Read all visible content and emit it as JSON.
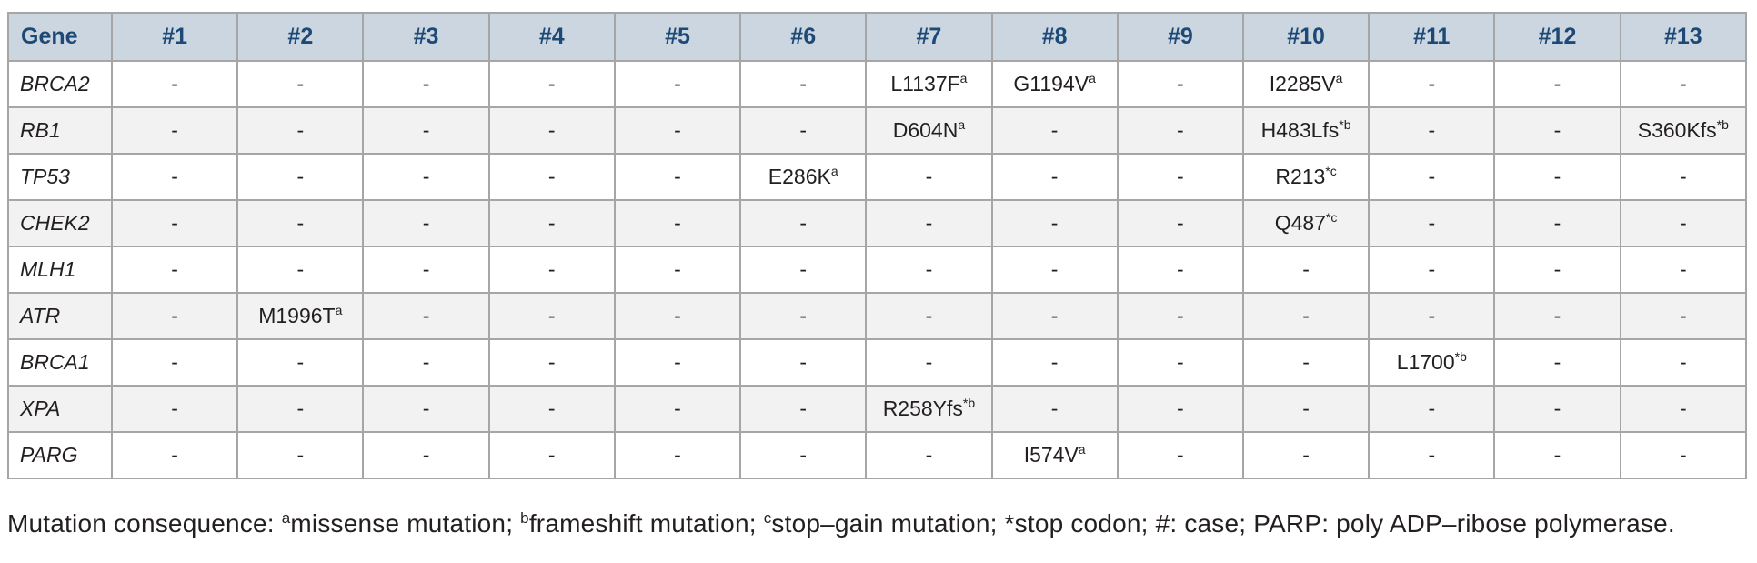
{
  "table": {
    "gene_header": "Gene",
    "case_headers": [
      "#1",
      "#2",
      "#3",
      "#4",
      "#5",
      "#6",
      "#7",
      "#8",
      "#9",
      "#10",
      "#11",
      "#12",
      "#13"
    ],
    "rows": [
      {
        "gene": "BRCA2",
        "cells": [
          "-",
          "-",
          "-",
          "-",
          "-",
          "-",
          "L1137F^a",
          "G1194V^a",
          "-",
          "I2285V^a",
          "-",
          "-",
          "-"
        ]
      },
      {
        "gene": "RB1",
        "cells": [
          "-",
          "-",
          "-",
          "-",
          "-",
          "-",
          "D604N^a",
          "-",
          "-",
          "H483Lfs^*b",
          "-",
          "-",
          "S360Kfs^*b"
        ]
      },
      {
        "gene": "TP53",
        "cells": [
          "-",
          "-",
          "-",
          "-",
          "-",
          "E286K^a",
          "-",
          "-",
          "-",
          "R213^*c",
          "-",
          "-",
          "-"
        ]
      },
      {
        "gene": "CHEK2",
        "cells": [
          "-",
          "-",
          "-",
          "-",
          "-",
          "-",
          "-",
          "-",
          "-",
          "Q487^*c",
          "-",
          "-",
          "-"
        ]
      },
      {
        "gene": "MLH1",
        "cells": [
          "-",
          "-",
          "-",
          "-",
          "-",
          "-",
          "-",
          "-",
          "-",
          "-",
          "-",
          "-",
          "-"
        ]
      },
      {
        "gene": "ATR",
        "cells": [
          "-",
          "M1996T^a",
          "-",
          "-",
          "-",
          "-",
          "-",
          "-",
          "-",
          "-",
          "-",
          "-",
          "-"
        ]
      },
      {
        "gene": "BRCA1",
        "cells": [
          "-",
          "-",
          "-",
          "-",
          "-",
          "-",
          "-",
          "-",
          "-",
          "-",
          "L1700^*b",
          "-",
          "-"
        ]
      },
      {
        "gene": "XPA",
        "cells": [
          "-",
          "-",
          "-",
          "-",
          "-",
          "-",
          "R258Yfs^*b",
          "-",
          "-",
          "-",
          "-",
          "-",
          "-"
        ]
      },
      {
        "gene": "PARG",
        "cells": [
          "-",
          "-",
          "-",
          "-",
          "-",
          "-",
          "-",
          "I574V^a",
          "-",
          "-",
          "-",
          "-",
          "-"
        ]
      }
    ]
  },
  "footnote": {
    "segments": [
      {
        "text": "Mutation consequence: "
      },
      {
        "sup": "a"
      },
      {
        "text": "missense mutation; "
      },
      {
        "sup": "b"
      },
      {
        "text": "frameshift mutation; "
      },
      {
        "sup": "c"
      },
      {
        "text": "stop–gain mutation; *stop codon; #: case; PARP: poly ADP–ribose polymerase."
      }
    ]
  },
  "colors": {
    "header_bg": "#ccd6e0",
    "header_text": "#1d4976",
    "border": "#a6a6a6",
    "alt_row_bg": "#f2f2f2",
    "body_text": "#231f20"
  }
}
